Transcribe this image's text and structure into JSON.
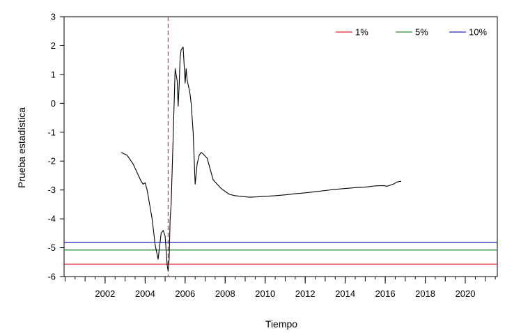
{
  "chart_data": {
    "type": "line",
    "xlabel": "Tiempo",
    "ylabel": "Prueba estadística",
    "xlim": [
      1999.95,
      2021.6
    ],
    "ylim": [
      -6,
      3
    ],
    "x_ticks": [
      2002,
      2004,
      2006,
      2008,
      2010,
      2012,
      2014,
      2016,
      2018,
      2020
    ],
    "y_ticks": [
      3,
      2,
      1,
      0,
      -1,
      -2,
      -3,
      -4,
      -5,
      -6
    ],
    "grid": false,
    "legend_position": "top-right",
    "series": [
      {
        "color": "#000000",
        "x": [
          2002.8,
          2003.1,
          2003.4,
          2003.6,
          2003.8,
          2003.9,
          2004.0,
          2004.1,
          2004.2,
          2004.35,
          2004.5,
          2004.65,
          2004.8,
          2004.9,
          2005.0,
          2005.1,
          2005.15,
          2005.2,
          2005.25,
          2005.3,
          2005.4,
          2005.5,
          2005.6,
          2005.65,
          2005.7,
          2005.75,
          2005.8,
          2005.9,
          2006.0,
          2006.05,
          2006.1,
          2006.2,
          2006.25,
          2006.3,
          2006.4,
          2006.5,
          2006.6,
          2006.7,
          2006.8,
          2006.9,
          2007.1,
          2007.3,
          2007.4,
          2007.6,
          2007.8,
          2008.0,
          2008.2,
          2008.5,
          2008.8,
          2009.2,
          2009.6,
          2010.0,
          2010.5,
          2011.0,
          2011.5,
          2012.0,
          2012.5,
          2013.0,
          2013.5,
          2014.0,
          2014.5,
          2015.0,
          2015.5,
          2015.9,
          2016.1,
          2016.4,
          2016.6,
          2016.8
        ],
        "y": [
          -1.7,
          -1.8,
          -2.1,
          -2.4,
          -2.7,
          -2.8,
          -2.75,
          -3.0,
          -3.4,
          -4.0,
          -4.9,
          -5.4,
          -4.5,
          -4.4,
          -4.6,
          -5.6,
          -5.8,
          -5.4,
          -4.0,
          -3.5,
          -1.2,
          1.2,
          0.8,
          -0.1,
          0.6,
          1.6,
          1.85,
          1.95,
          0.7,
          1.2,
          0.8,
          0.5,
          0.3,
          0.0,
          -1.0,
          -2.8,
          -2.1,
          -1.8,
          -1.7,
          -1.75,
          -1.9,
          -2.4,
          -2.65,
          -2.8,
          -2.95,
          -3.05,
          -3.15,
          -3.2,
          -3.22,
          -3.25,
          -3.24,
          -3.22,
          -3.2,
          -3.17,
          -3.13,
          -3.1,
          -3.06,
          -3.02,
          -2.98,
          -2.95,
          -2.92,
          -2.9,
          -2.86,
          -2.85,
          -2.87,
          -2.8,
          -2.72,
          -2.7
        ]
      },
      {
        "name": "1%",
        "color": "#e8252b",
        "y": -5.57
      },
      {
        "name": "5%",
        "color": "#2e8b3a",
        "y": -5.08
      },
      {
        "name": "10%",
        "color": "#2b2bc4",
        "y": -4.82
      }
    ],
    "annotations": [
      {
        "type": "vline",
        "x": 2005.15,
        "color": "#e03030",
        "style": "dashed"
      }
    ]
  }
}
